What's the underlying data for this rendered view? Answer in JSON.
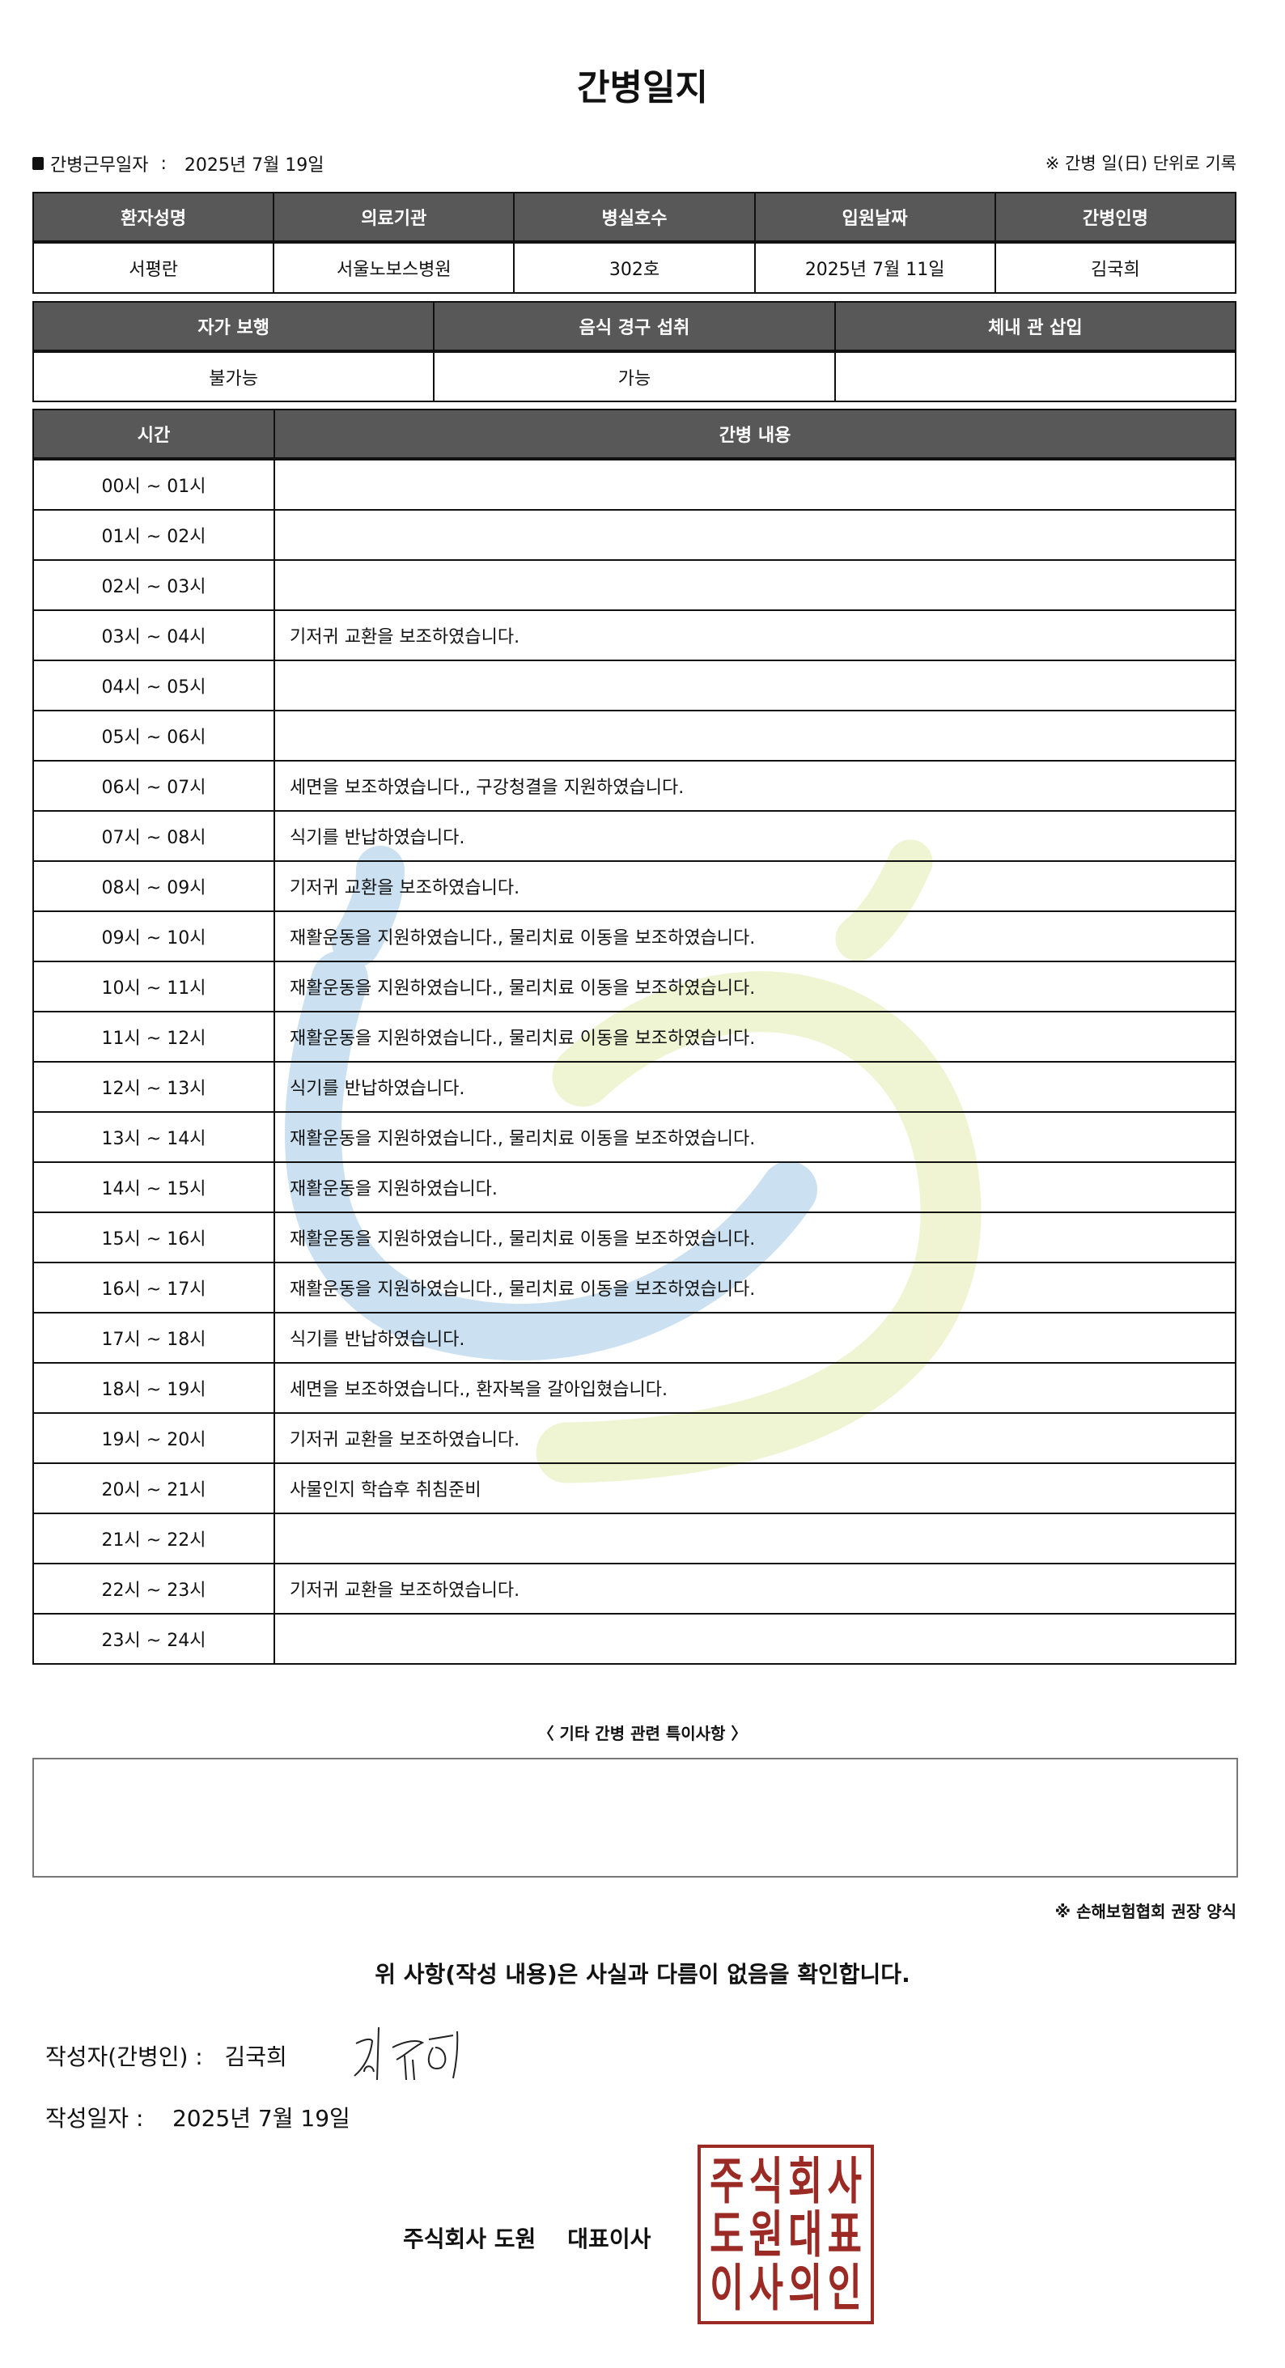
{
  "title": "간병일지",
  "work_date_label": "간병근무일자",
  "work_date": "2025년 7월 19일",
  "record_unit_note": "※ 간병 일(日) 단위로 기록",
  "patient_table": {
    "headers": [
      "환자성명",
      "의료기관",
      "병실호수",
      "입원날짜",
      "간병인명"
    ],
    "values": [
      "서평란",
      "서울노보스병원",
      "302호",
      "2025년 7월 11일",
      "김국희"
    ]
  },
  "status_table": {
    "headers": [
      "자가 보행",
      "음식 경구 섭취",
      "체내 관 삽입"
    ],
    "values": [
      "불가능",
      "가능",
      ""
    ]
  },
  "log_table": {
    "headers": [
      "시간",
      "간병 내용"
    ],
    "rows": [
      {
        "time": "00시 ~ 01시",
        "content": ""
      },
      {
        "time": "01시 ~ 02시",
        "content": ""
      },
      {
        "time": "02시 ~ 03시",
        "content": ""
      },
      {
        "time": "03시 ~ 04시",
        "content": "기저귀 교환을 보조하였습니다."
      },
      {
        "time": "04시 ~ 05시",
        "content": ""
      },
      {
        "time": "05시 ~ 06시",
        "content": ""
      },
      {
        "time": "06시 ~ 07시",
        "content": "세면을 보조하였습니다., 구강청결을 지원하였습니다."
      },
      {
        "time": "07시 ~ 08시",
        "content": "식기를 반납하였습니다."
      },
      {
        "time": "08시 ~ 09시",
        "content": "기저귀 교환을 보조하였습니다."
      },
      {
        "time": "09시 ~ 10시",
        "content": "재활운동을 지원하였습니다., 물리치료 이동을 보조하였습니다."
      },
      {
        "time": "10시 ~ 11시",
        "content": "재활운동을 지원하였습니다., 물리치료 이동을 보조하였습니다."
      },
      {
        "time": "11시 ~ 12시",
        "content": "재활운동을 지원하였습니다., 물리치료 이동을 보조하였습니다."
      },
      {
        "time": "12시 ~ 13시",
        "content": "식기를 반납하였습니다."
      },
      {
        "time": "13시 ~ 14시",
        "content": "재활운동을 지원하였습니다., 물리치료 이동을 보조하였습니다."
      },
      {
        "time": "14시 ~ 15시",
        "content": "재활운동을 지원하였습니다."
      },
      {
        "time": "15시 ~ 16시",
        "content": "재활운동을 지원하였습니다., 물리치료 이동을 보조하였습니다."
      },
      {
        "time": "16시 ~ 17시",
        "content": "재활운동을 지원하였습니다., 물리치료 이동을 보조하였습니다."
      },
      {
        "time": "17시 ~ 18시",
        "content": "식기를 반납하였습니다."
      },
      {
        "time": "18시 ~ 19시",
        "content": "세면을 보조하였습니다., 환자복을 갈아입혔습니다."
      },
      {
        "time": "19시 ~ 20시",
        "content": "기저귀 교환을 보조하였습니다."
      },
      {
        "time": "20시 ~ 21시",
        "content": "사물인지 학습후 취침준비"
      },
      {
        "time": "21시 ~ 22시",
        "content": ""
      },
      {
        "time": "22시 ~ 23시",
        "content": "기저귀 교환을 보조하였습니다."
      },
      {
        "time": "23시 ~ 24시",
        "content": ""
      }
    ]
  },
  "notes": {
    "label": "〈 기타 간병 관련 특이사항 〉",
    "value": ""
  },
  "association_note": "※ 손해보험협회 권장 양식",
  "confirm_text": "위 사항(작성 내용)은 사실과 다름이 없음을 확인합니다.",
  "writer_label": "작성자(간병인) :",
  "writer_name": "김국희",
  "written_date_label": "작성일자 :",
  "written_date": "2025년 7월 19일",
  "company": "주식회사 도원    대표이사",
  "seal_text": "주식회사도원대표이사의인",
  "colors": {
    "header_bg": "#585858",
    "seal": "#9b2a25",
    "watermark_blue": "#a9cce8",
    "watermark_green": "#e6edb5"
  }
}
